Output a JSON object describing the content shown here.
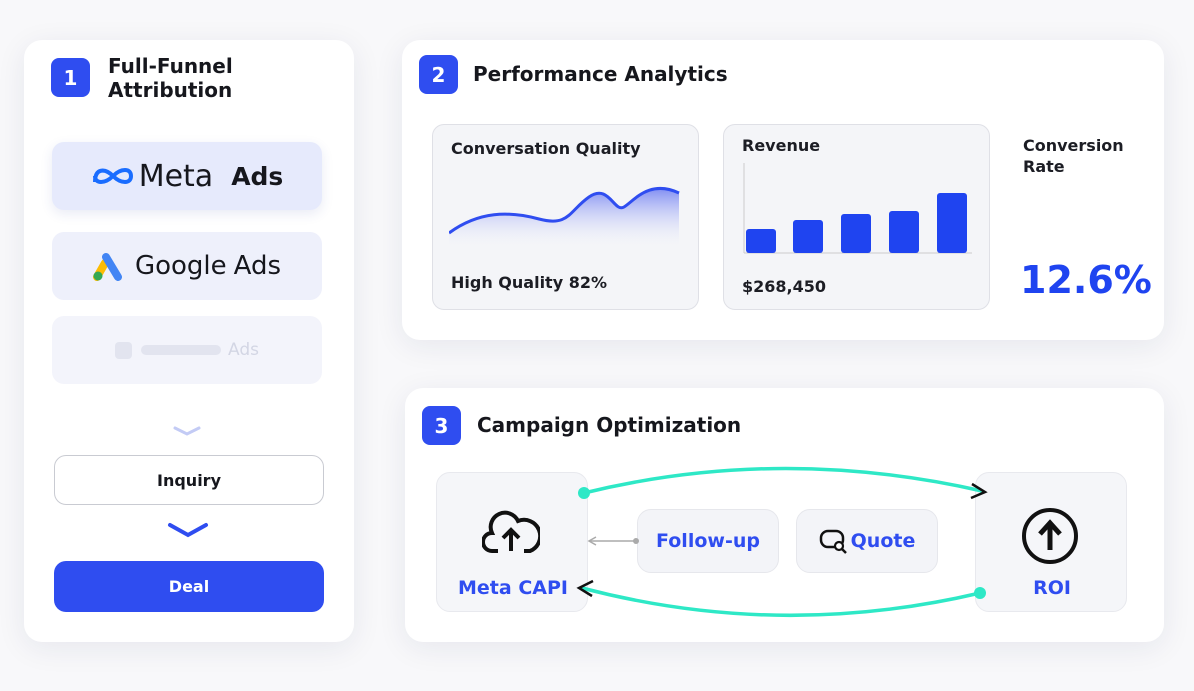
{
  "attribution": {
    "step": "1",
    "title": "Full-Funnel Attribution",
    "sources": [
      {
        "brand": "Meta",
        "suffix": "Ads"
      },
      {
        "brand": "Google",
        "suffix": "Ads"
      },
      {
        "suffix": "Ads"
      }
    ],
    "funnel": [
      "Inquiry",
      "Deal"
    ]
  },
  "analytics": {
    "step": "2",
    "title": "Performance Analytics",
    "cards": [
      {
        "title": "Conversation Quality",
        "caption": "High Quality 82%"
      },
      {
        "title": "Revenue",
        "caption": "$268,450"
      },
      {
        "title": "Conversion Rate",
        "caption": "12.6%"
      }
    ]
  },
  "optimization": {
    "step": "3",
    "title": "Campaign Optimization",
    "nodes": [
      "Meta CAPI",
      "Follow-up",
      "Quote",
      "ROI"
    ]
  }
}
